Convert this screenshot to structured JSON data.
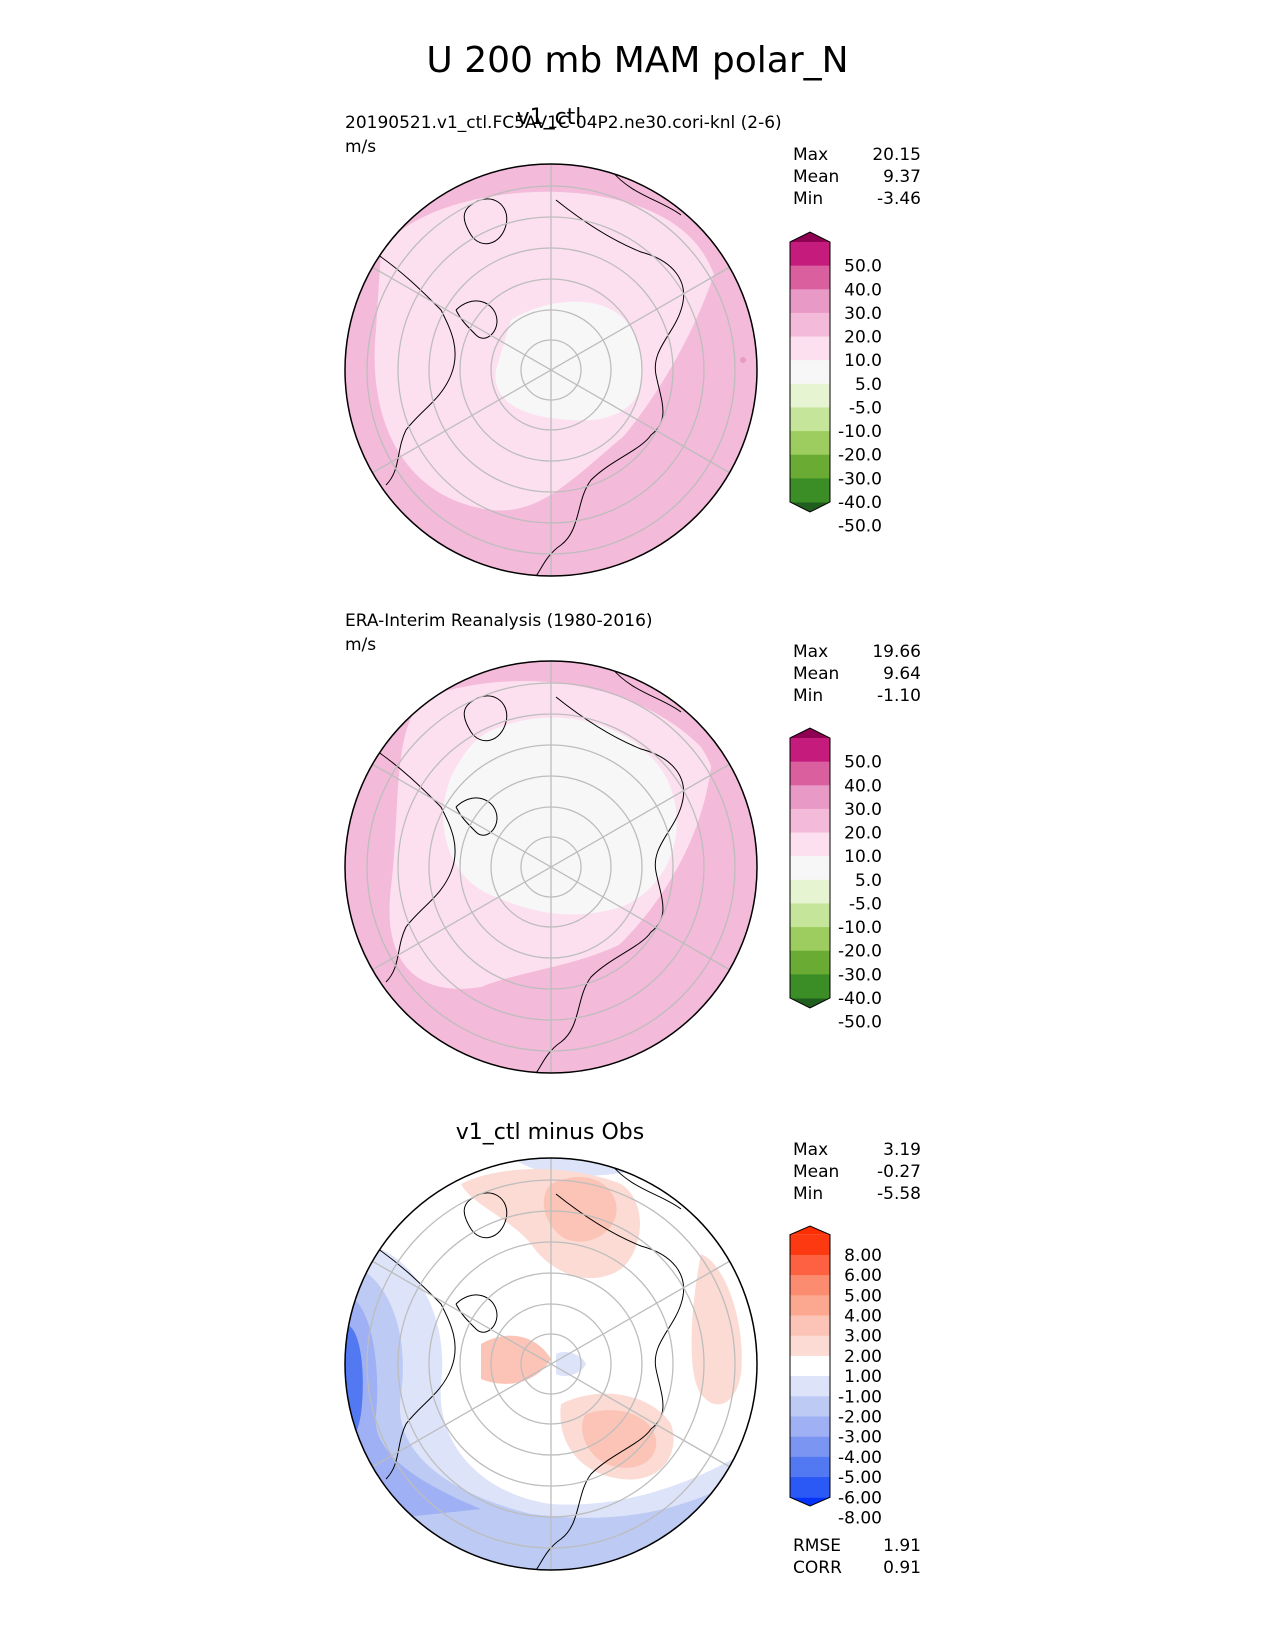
{
  "figure": {
    "title": "U 200 mb MAM polar_N"
  },
  "colors": {
    "cmap_fields": [
      "#1f5e1d",
      "#3b8d25",
      "#6aab33",
      "#9dcd5e",
      "#c5e59b",
      "#e6f4d1",
      "#f7f7f7",
      "#fde0ef",
      "#f4bad9",
      "#e999c6",
      "#d95f9f",
      "#c51b7d",
      "#8e0152"
    ],
    "cmap_diff": [
      "#0433ff",
      "#2b59f5",
      "#5379f2",
      "#7a95f2",
      "#9fb0f4",
      "#bccaf4",
      "#dde3f9",
      "#ffffff",
      "#fbdbd3",
      "#fbc4b6",
      "#fca890",
      "#fc8c6f",
      "#fd6141",
      "#fd3911",
      "#ff2e00"
    ],
    "grid": "#bdbdbd",
    "coast": "#000000"
  },
  "panels": [
    {
      "id": "test",
      "title": "v1_ctl",
      "label": "20190521.v1_ctl.FC5AV1C-04P2.ne30.cori-knl (2-6)",
      "units": "m/s",
      "stats": [
        {
          "k": "Max",
          "v": "20.15"
        },
        {
          "k": "Mean",
          "v": "9.37"
        },
        {
          "k": "Min",
          "v": "-3.46"
        }
      ],
      "colorbar_ticks": [
        "50.0",
        "40.0",
        "30.0",
        "20.0",
        "10.0",
        "5.0",
        "-5.0",
        "-10.0",
        "-20.0",
        "-30.0",
        "-40.0",
        "-50.0"
      ]
    },
    {
      "id": "ref",
      "title": "",
      "label": "ERA-Interim Reanalysis (1980-2016)",
      "units": "m/s",
      "stats": [
        {
          "k": "Max",
          "v": "19.66"
        },
        {
          "k": "Mean",
          "v": "9.64"
        },
        {
          "k": "Min",
          "v": "-1.10"
        }
      ],
      "colorbar_ticks": [
        "50.0",
        "40.0",
        "30.0",
        "20.0",
        "10.0",
        "5.0",
        "-5.0",
        "-10.0",
        "-20.0",
        "-30.0",
        "-40.0",
        "-50.0"
      ]
    },
    {
      "id": "diff",
      "title": "v1_ctl minus Obs",
      "label": "",
      "units": "",
      "stats": [
        {
          "k": "Max",
          "v": "3.19"
        },
        {
          "k": "Mean",
          "v": "-0.27"
        },
        {
          "k": "Min",
          "v": "-5.58"
        }
      ],
      "colorbar_ticks": [
        "8.00",
        "6.00",
        "5.00",
        "4.00",
        "3.00",
        "2.00",
        "1.00",
        "-1.00",
        "-2.00",
        "-3.00",
        "-4.00",
        "-5.00",
        "-6.00",
        "-8.00"
      ],
      "metrics": [
        {
          "k": "RMSE",
          "v": "1.91"
        },
        {
          "k": "CORR",
          "v": "0.91"
        }
      ]
    }
  ],
  "chart_data": [
    {
      "type": "heatmap",
      "title": "v1_ctl",
      "projection": "north polar stereographic",
      "units": "m/s",
      "max": 20.15,
      "mean": 9.37,
      "min": -3.46,
      "levels": [
        -50,
        -40,
        -30,
        -20,
        -10,
        -5,
        5,
        10,
        20,
        30,
        40,
        50
      ]
    },
    {
      "type": "heatmap",
      "title": "ERA-Interim Reanalysis (1980-2016)",
      "projection": "north polar stereographic",
      "units": "m/s",
      "max": 19.66,
      "mean": 9.64,
      "min": -1.1,
      "levels": [
        -50,
        -40,
        -30,
        -20,
        -10,
        -5,
        5,
        10,
        20,
        30,
        40,
        50
      ]
    },
    {
      "type": "heatmap",
      "title": "v1_ctl minus Obs",
      "projection": "north polar stereographic",
      "max": 3.19,
      "mean": -0.27,
      "min": -5.58,
      "rmse": 1.91,
      "corr": 0.91,
      "levels": [
        -8,
        -6,
        -5,
        -4,
        -3,
        -2,
        -1,
        1,
        2,
        3,
        4,
        5,
        6,
        8
      ]
    }
  ]
}
